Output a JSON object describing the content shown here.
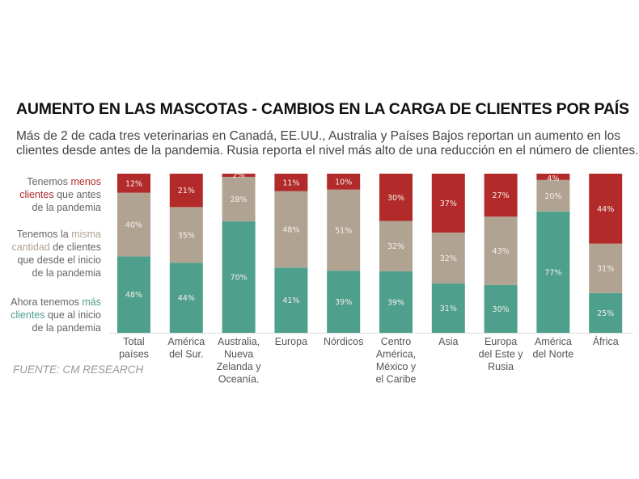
{
  "chart_data": {
    "type": "bar",
    "stacked": true,
    "title": "AUMENTO EN LAS MASCOTAS - CAMBIOS EN LA CARGA DE CLIENTES POR PAÍS",
    "subtitle": "Más de 2 de cada tres veterinarias en Canadá, EE.UU., Australia y Países Bajos reportan un aumento en los clientes desde antes de la pandemia. Rusia reporta el nivel más alto de una reducción en el número de clientes.",
    "source": "FUENTE: CM RESEARCH",
    "categories": [
      [
        "Total",
        "países"
      ],
      [
        "América",
        "del Sur."
      ],
      [
        "Australia,",
        "Nueva",
        "Zelanda y",
        "Oceanía."
      ],
      [
        "Europa"
      ],
      [
        "Nórdicos"
      ],
      [
        "Centro",
        "América,",
        "México y",
        "el Caribe"
      ],
      [
        "Asia"
      ],
      [
        "Europa",
        "del Este y",
        "Rusia"
      ],
      [
        "América",
        "del Norte"
      ],
      [
        "África"
      ]
    ],
    "series": [
      {
        "key": "mas",
        "color": "#4e9f8c",
        "values": [
          48,
          44,
          70,
          41,
          39,
          39,
          31,
          30,
          77,
          25
        ]
      },
      {
        "key": "misma",
        "color": "#b0a392",
        "values": [
          40,
          35,
          28,
          48,
          51,
          32,
          32,
          43,
          20,
          31
        ]
      },
      {
        "key": "menos",
        "color": "#b22a2a",
        "values": [
          12,
          21,
          2,
          11,
          10,
          30,
          37,
          27,
          4,
          44
        ]
      }
    ],
    "legend": {
      "menos": {
        "pre": "Tenemos ",
        "hl": "menos",
        "l2hl": "clientes",
        "post": " que antes",
        "l3": "de la pandemia"
      },
      "misma": {
        "l1pre": "Tenemos la ",
        "hl": "misma",
        "l2hl": "cantidad",
        "l2post": " de clientes",
        "l3": "que desde el inicio",
        "l4": "de la pandemia"
      },
      "mas": {
        "pre": "Ahora tenemos ",
        "hl": "más",
        "l2hl": "clientes",
        "post": " que al inicio",
        "l3": "de la pandemia"
      }
    },
    "ylim": [
      0,
      100
    ],
    "value_suffix": "%"
  }
}
